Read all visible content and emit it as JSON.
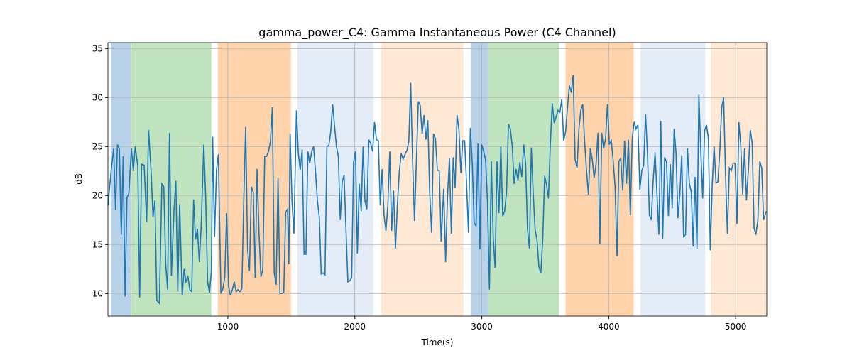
{
  "chart_data": {
    "type": "line",
    "title": "gamma_power_C4: Gamma Instantaneous Power (C4 Channel)",
    "x_label": "Time(s)",
    "y_label": "dB",
    "xlim": [
      55,
      5245
    ],
    "ylim": [
      7.7,
      35.6
    ],
    "xticks": [
      1000,
      2000,
      3000,
      4000,
      5000
    ],
    "yticks": [
      10,
      15,
      20,
      25,
      30,
      35
    ],
    "grid": true,
    "spans": [
      {
        "start": 78,
        "end": 235,
        "color": "#b8d3e9"
      },
      {
        "start": 240,
        "end": 870,
        "color": "#c1e4c0"
      },
      {
        "start": 920,
        "end": 1497,
        "color": "#ffd4ad"
      },
      {
        "start": 1547,
        "end": 2145,
        "color": "#e4ecf7"
      },
      {
        "start": 2207,
        "end": 2855,
        "color": "#ffe8d4"
      },
      {
        "start": 2916,
        "end": 3050,
        "color": "#b8d3e9"
      },
      {
        "start": 3050,
        "end": 3609,
        "color": "#c1e4c0"
      },
      {
        "start": 3659,
        "end": 4196,
        "color": "#ffd4ad"
      },
      {
        "start": 4251,
        "end": 4760,
        "color": "#e4ecf7"
      },
      {
        "start": 4804,
        "end": 5245,
        "color": "#ffe8d4"
      }
    ],
    "series": [
      {
        "color": "#1f77b4",
        "x": [
          55,
          80,
          100,
          115,
          130,
          145,
          160,
          175,
          190,
          205,
          220,
          240,
          255,
          270,
          290,
          305,
          320,
          340,
          360,
          375,
          395,
          410,
          425,
          440,
          460,
          480,
          495,
          510,
          525,
          540,
          555,
          575,
          590,
          605,
          620,
          640,
          655,
          670,
          685,
          700,
          715,
          730,
          745,
          760,
          775,
          790,
          810,
          825,
          840,
          855,
          870,
          880,
          895,
          910,
          925,
          945,
          960,
          975,
          990,
          1005,
          1020,
          1035,
          1050,
          1065,
          1080,
          1095,
          1110,
          1125,
          1140,
          1155,
          1170,
          1185,
          1200,
          1215,
          1230,
          1245,
          1260,
          1275,
          1290,
          1305,
          1320,
          1335,
          1350,
          1365,
          1380,
          1395,
          1410,
          1425,
          1440,
          1455,
          1470,
          1480,
          1490,
          1505,
          1520,
          1540,
          1555,
          1570,
          1585,
          1600,
          1615,
          1630,
          1645,
          1660,
          1675,
          1690,
          1705,
          1720,
          1735,
          1750,
          1765,
          1780,
          1795,
          1810,
          1825,
          1840,
          1855,
          1870,
          1885,
          1900,
          1915,
          1930,
          1945,
          1960,
          1975,
          1990,
          2005,
          2020,
          2035,
          2050,
          2065,
          2080,
          2095,
          2110,
          2125,
          2140,
          2155,
          2170,
          2185,
          2200,
          2215,
          2230,
          2245,
          2260,
          2275,
          2290,
          2305,
          2320,
          2335,
          2350,
          2365,
          2380,
          2395,
          2410,
          2425,
          2440,
          2455,
          2470,
          2485,
          2500,
          2515,
          2530,
          2545,
          2560,
          2575,
          2590,
          2605,
          2620,
          2635,
          2650,
          2665,
          2680,
          2700,
          2715,
          2730,
          2745,
          2760,
          2775,
          2790,
          2805,
          2820,
          2835,
          2850,
          2865,
          2880,
          2895,
          2910,
          2925,
          2940,
          2955,
          2970,
          2985,
          3000,
          3015,
          3030,
          3045,
          3060,
          3075,
          3090,
          3105,
          3120,
          3135,
          3150,
          3165,
          3180,
          3195,
          3210,
          3225,
          3240,
          3255,
          3270,
          3285,
          3300,
          3315,
          3330,
          3345,
          3360,
          3375,
          3390,
          3405,
          3420,
          3435,
          3450,
          3465,
          3480,
          3495,
          3510,
          3525,
          3540,
          3555,
          3570,
          3585,
          3600,
          3615,
          3630,
          3645,
          3660,
          3675,
          3690,
          3705,
          3720,
          3735,
          3750,
          3765,
          3780,
          3795,
          3810,
          3825,
          3840,
          3855,
          3870,
          3885,
          3900,
          3915,
          3930,
          3945,
          3960,
          3975,
          3990,
          4005,
          4020,
          4035,
          4050,
          4065,
          4080,
          4095,
          4110,
          4125,
          4140,
          4155,
          4170,
          4185,
          4200,
          4215,
          4230,
          4245,
          4260,
          4275,
          4290,
          4305,
          4320,
          4335,
          4350,
          4365,
          4380,
          4395,
          4410,
          4425,
          4440,
          4455,
          4470,
          4485,
          4500,
          4515,
          4530,
          4545,
          4560,
          4575,
          4590,
          4605,
          4620,
          4635,
          4650,
          4665,
          4680,
          4695,
          4710,
          4725,
          4740,
          4755,
          4770,
          4785,
          4800,
          4815,
          4830,
          4845,
          4860,
          4875,
          4890,
          4905,
          4920,
          4935,
          4950,
          4965,
          4980,
          4995,
          5010,
          5025,
          5040,
          5055,
          5070,
          5085,
          5100,
          5115,
          5130,
          5145,
          5160,
          5175,
          5190,
          5205,
          5220,
          5240
        ],
        "values": [
          19,
          22.5,
          24.8,
          18.5,
          25.2,
          24.8,
          16,
          24,
          9.7,
          19.8,
          20.2,
          24.8,
          22.5,
          25,
          23,
          9.6,
          23.2,
          23.1,
          17.3,
          26.7,
          22.5,
          17.8,
          19.5,
          9.3,
          9,
          21.2,
          20.9,
          13,
          10.4,
          26.4,
          11.8,
          18.4,
          21.5,
          10.2,
          19.1,
          9.8,
          12.5,
          11.2,
          11.7,
          10.4,
          10.2,
          19.6,
          15.5,
          16.6,
          13.2,
          17,
          25.2,
          19.8,
          11.2,
          10.1,
          12.3,
          26,
          15.8,
          22.6,
          24.2,
          10,
          10.5,
          11.6,
          18.2,
          10.8,
          9.8,
          10.4,
          11.2,
          10.2,
          10.4,
          10.2,
          10.5,
          19.5,
          27,
          14.5,
          12.3,
          20.9,
          20.3,
          11.6,
          22.7,
          16.2,
          11.7,
          12.5,
          24,
          24,
          24.5,
          25.5,
          29,
          12.1,
          10.9,
          21.8,
          10,
          10,
          10.1,
          18.3,
          18.6,
          13,
          26.3,
          19.4,
          16.1,
          28.7,
          24.3,
          22.6,
          24.7,
          14,
          14,
          24.5,
          23.3,
          24.5,
          25,
          22.5,
          19.5,
          17.8,
          12,
          12.1,
          11.9,
          25,
          25.1,
          26.5,
          29.3,
          27.1,
          25,
          24,
          17.5,
          21.3,
          22.1,
          16.6,
          11.2,
          11.3,
          11.6,
          23.4,
          24.5,
          14.1,
          21.2,
          18.4,
          25,
          19.4,
          18.6,
          25.7,
          25.3,
          24.5,
          27.5,
          25.7,
          25.6,
          19,
          22.7,
          18,
          16.4,
          19,
          24.5,
          16.4,
          20.5,
          14.6,
          19,
          22.4,
          24.3,
          23.7,
          24.2,
          24.6,
          25.5,
          31.5,
          23.5,
          17.4,
          23.6,
          29.6,
          29.2,
          26.3,
          28.2,
          25.7,
          27.7,
          20.2,
          16.2,
          26.3,
          25.8,
          22.6,
          22.5,
          15.3,
          20.7,
          13.2,
          19.9,
          23.8,
          16.1,
          23.9,
          20.8,
          28.2,
          26.7,
          22.3,
          25.6,
          25.6,
          21.2,
          16.2,
          26.9,
          23.3,
          17.2,
          16.9,
          25.3,
          14.5,
          25.2,
          24.5,
          23.6,
          19.3,
          10.4,
          23.5,
          15.7,
          12.6,
          23.5,
          18.2,
          25,
          17.9,
          18.4,
          20.4,
          27.3,
          26.8,
          25,
          21.2,
          22.7,
          21.5,
          23.4,
          21.9,
          25.2,
          23.3,
          16.6,
          14.6,
          24.9,
          20.2,
          16.5,
          15.5,
          12.7,
          12.1,
          15.5,
          22,
          21.1,
          19.7,
          25.3,
          29.4,
          27.4,
          28,
          28.7,
          28.5,
          29.8,
          25.6,
          26.5,
          29,
          31.2,
          30.5,
          32.3,
          23.7,
          22.8,
          26.8,
          28.7,
          29.3,
          25.5,
          22.5,
          20.1,
          24.8,
          23.7,
          21.8,
          23.2,
          26.4,
          15,
          26.4,
          24.8,
          25.8,
          29.3,
          25.2,
          25.6,
          23.5,
          20.9,
          13.8,
          23.5,
          23.8,
          20.5,
          25.6,
          21.2,
          25.7,
          18,
          25.8,
          27.5,
          26.8,
          27.2,
          20.6,
          22.5,
          23.1,
          28.3,
          24.3,
          18,
          17.5,
          21.5,
          24.4,
          20.1,
          16,
          27.6,
          15.6,
          23.9,
          23.4,
          17.9,
          23.2,
          18.7,
          26.8,
          24.4,
          17.7,
          20.1,
          24.1,
          15.8,
          16,
          24.8,
          21.2,
          20.4,
          14.8,
          21.9,
          14.5,
          30.3,
          24.6,
          19.7,
          26.6,
          27.2,
          25.8,
          14.4,
          21,
          25,
          21.3,
          21.4,
          24.6,
          29,
          30,
          22.1,
          16.1,
          22.8,
          22.5,
          23.3,
          23.3,
          17.1,
          27.5,
          25.1,
          20.1,
          24.8,
          19.5,
          22.6,
          26.7,
          25.3,
          16.6,
          16.1,
          17.5,
          23.5,
          22.8,
          17.5,
          18.4
        ]
      }
    ]
  }
}
